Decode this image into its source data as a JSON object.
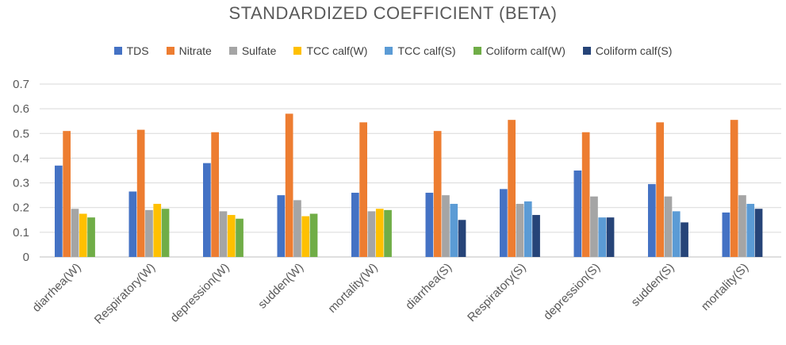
{
  "chart_data": {
    "type": "bar",
    "title": "STANDARDIZED COEFFICIENT (BETA)",
    "categories": [
      "diarrhea(W)",
      "Respiratory(W)",
      "depression(W)",
      "sudden(W)",
      "mortality(W)",
      "diarrhea(S)",
      "Respiratory(S)",
      "depression(S)",
      "sudden(S)",
      "mortality(S)"
    ],
    "series": [
      {
        "name": "TDS",
        "color": "#4472C4",
        "values": [
          0.37,
          0.265,
          0.38,
          0.25,
          0.26,
          0.26,
          0.275,
          0.35,
          0.295,
          0.18
        ]
      },
      {
        "name": "Nitrate",
        "color": "#ED7D31",
        "values": [
          0.51,
          0.515,
          0.505,
          0.58,
          0.545,
          0.51,
          0.555,
          0.505,
          0.545,
          0.555
        ]
      },
      {
        "name": "Sulfate",
        "color": "#A5A5A5",
        "values": [
          0.195,
          0.19,
          0.185,
          0.23,
          0.185,
          0.25,
          0.215,
          0.245,
          0.245,
          0.25
        ]
      },
      {
        "name": "TCC calf(W)",
        "color": "#FFC000",
        "values": [
          0.175,
          0.215,
          0.17,
          0.165,
          0.195,
          null,
          null,
          null,
          null,
          null
        ]
      },
      {
        "name": "TCC calf(S)",
        "color": "#5B9BD5",
        "values": [
          null,
          null,
          null,
          null,
          null,
          0.215,
          0.225,
          0.16,
          0.185,
          0.215
        ]
      },
      {
        "name": "Coliform calf(W)",
        "color": "#70AD47",
        "values": [
          0.16,
          0.195,
          0.155,
          0.175,
          0.19,
          null,
          null,
          null,
          null,
          null
        ]
      },
      {
        "name": "Coliform calf(S)",
        "color": "#264478",
        "values": [
          null,
          null,
          null,
          null,
          null,
          0.15,
          0.17,
          0.16,
          0.14,
          0.195
        ]
      }
    ],
    "ylim": [
      0,
      0.7
    ],
    "yticks": [
      "0",
      "0.1",
      "0.2",
      "0.3",
      "0.4",
      "0.5",
      "0.6",
      "0.7"
    ],
    "grid": true,
    "legend_position": "top"
  }
}
